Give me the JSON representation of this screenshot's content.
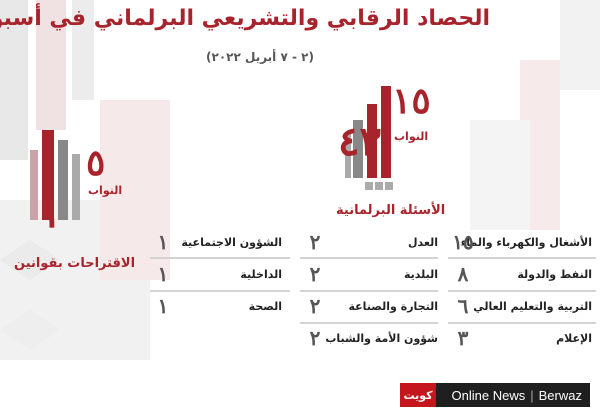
{
  "header": {
    "title": "الحصاد الرقابي والتشريعي البرلماني في أسبوع",
    "subtitle": "(٢ - ٧ أبريل ٢٠٢٢)"
  },
  "questions": {
    "total": "٤٣",
    "mps_count": "١٥",
    "mps_label": "النواب",
    "caption": "الأسئلة البرلمانية"
  },
  "proposals": {
    "total": "١",
    "mps_count": "٥",
    "mps_label": "النواب",
    "caption": "الاقتراحات بقوانين"
  },
  "table": {
    "col_right": [
      {
        "label": "الأشغال والكهرباء والماء",
        "value": "١٥"
      },
      {
        "label": "النفط والدولة",
        "value": "٨"
      },
      {
        "label": "التربية والتعليم العالي",
        "value": "٦"
      },
      {
        "label": "الإعلام",
        "value": "٣"
      }
    ],
    "col_middle": [
      {
        "label": "العدل",
        "value": "٢"
      },
      {
        "label": "البلدية",
        "value": "٢"
      },
      {
        "label": "التجارة والصناعة",
        "value": "٢"
      },
      {
        "label": "شؤون الأمة والشباب",
        "value": "٢"
      }
    ],
    "col_left": [
      {
        "label": "الشؤون الاجتماعية",
        "value": "١"
      },
      {
        "label": "الداخلية",
        "value": "١"
      },
      {
        "label": "الصحة",
        "value": "١"
      }
    ]
  },
  "brand": {
    "logo_text": "كويت",
    "name_1": "Online News",
    "separator": "|",
    "name_2": "Berwaz"
  },
  "colors": {
    "accent": "#a7242c",
    "muted": "#555555",
    "rule": "#d3d3d3"
  }
}
